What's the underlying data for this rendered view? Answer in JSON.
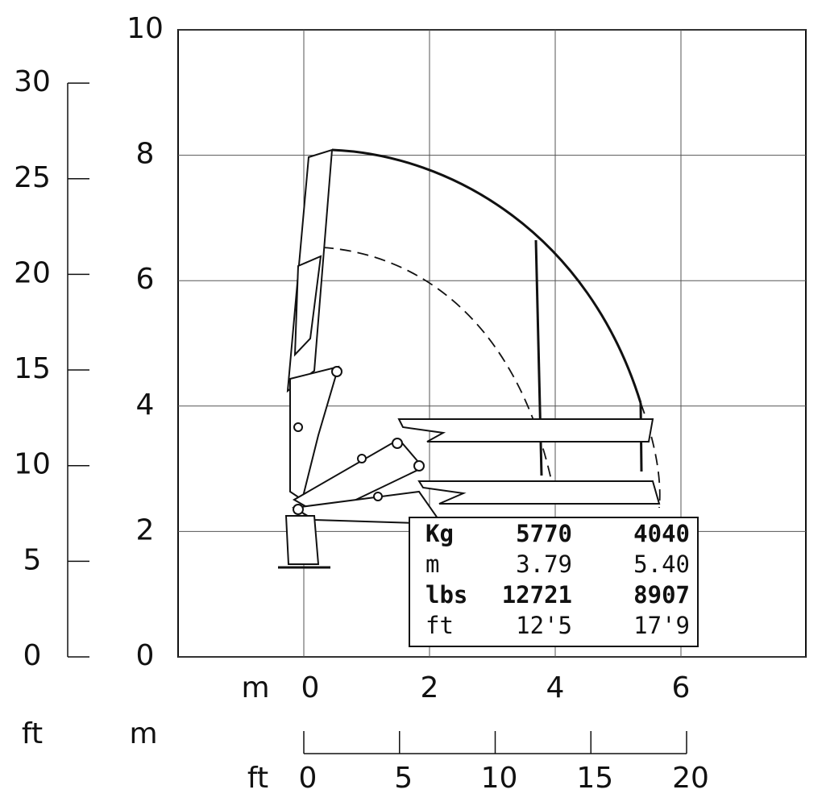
{
  "metric_axis": {
    "x_label": "m",
    "x_ticks": [
      0,
      2,
      4,
      6
    ],
    "y_ticks": [
      0,
      2,
      4,
      6,
      8,
      10
    ]
  },
  "feet_axis": {
    "y_label": "ft",
    "y_ticks": [
      0,
      5,
      10,
      15,
      20,
      25,
      30
    ],
    "x_label": "ft",
    "x_ticks": [
      0,
      5,
      10,
      15,
      20
    ]
  },
  "scale_label": "m",
  "table": {
    "rows": [
      [
        "Kg",
        "5770",
        "4040"
      ],
      [
        "m",
        "3.79",
        "5.40"
      ],
      [
        "lbs",
        "12721",
        "8907"
      ],
      [
        "ft",
        "12'5",
        "17'9"
      ]
    ]
  }
}
